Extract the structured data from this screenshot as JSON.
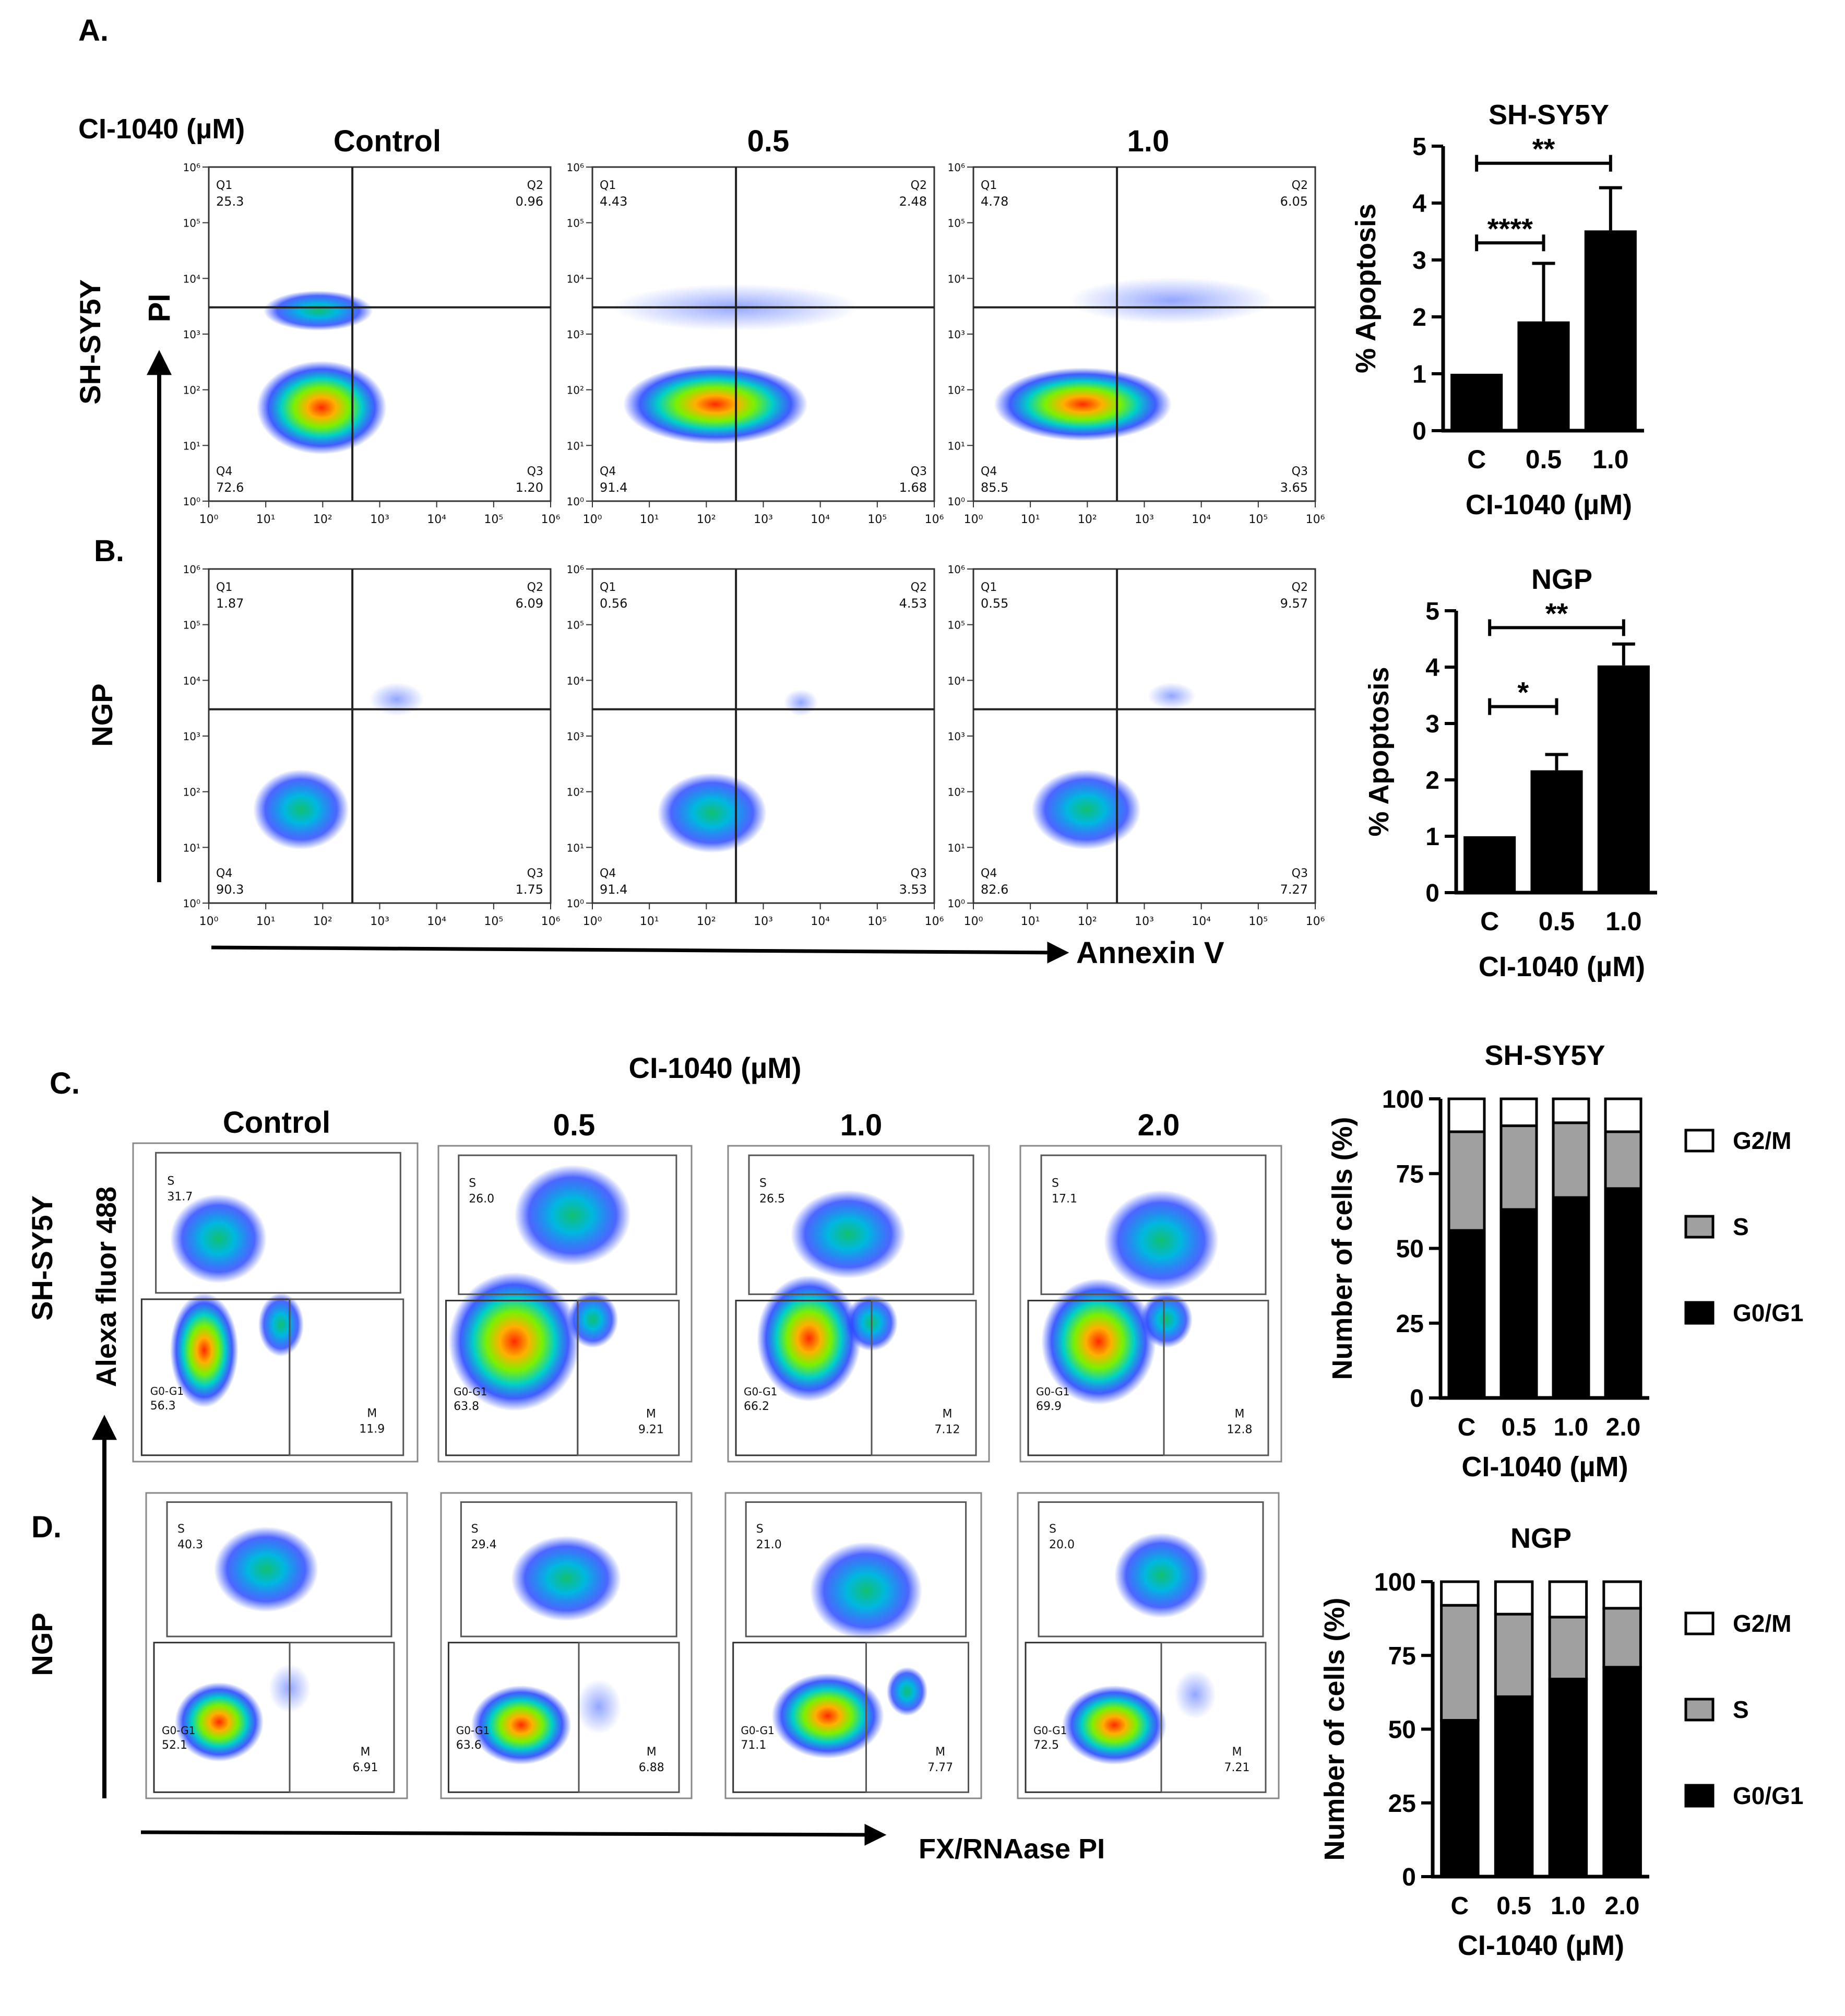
{
  "figure": {
    "panel_letters": [
      "A.",
      "B.",
      "C.",
      "D."
    ],
    "apoptosis_dose_title": "CI-1040 (µM)",
    "apoptosis_column_headers": [
      "Control",
      "0.5",
      "1.0"
    ],
    "apoptosis_row_labels": [
      "SH-SY5Y",
      "NGP"
    ],
    "apoptosis_y_axis_label": "PI",
    "apoptosis_x_axis_label": "Annexin V",
    "cycle_dose_title": "CI-1040 (µM)",
    "cycle_column_headers": [
      "Control",
      "0.5",
      "1.0",
      "2.0"
    ],
    "cycle_row_labels": [
      "SH-SY5Y",
      "NGP"
    ],
    "cycle_y_axis_label": "Alexa fluor 488",
    "cycle_x_axis_label": "FX/RNAase PI"
  },
  "apoptosis_flow_plots": [
    {
      "cell_line": "SH-SY5Y",
      "dose": "Control",
      "quadrants": [
        {
          "name": "Q1",
          "value": "25.3"
        },
        {
          "name": "Q2",
          "value": "0.96"
        },
        {
          "name": "Q3",
          "value": "1.20"
        },
        {
          "name": "Q4",
          "value": "72.6"
        }
      ]
    },
    {
      "cell_line": "SH-SY5Y",
      "dose": "0.5",
      "quadrants": [
        {
          "name": "Q1",
          "value": "4.43"
        },
        {
          "name": "Q2",
          "value": "2.48"
        },
        {
          "name": "Q3",
          "value": "1.68"
        },
        {
          "name": "Q4",
          "value": "91.4"
        }
      ]
    },
    {
      "cell_line": "SH-SY5Y",
      "dose": "1.0",
      "quadrants": [
        {
          "name": "Q1",
          "value": "4.78"
        },
        {
          "name": "Q2",
          "value": "6.05"
        },
        {
          "name": "Q3",
          "value": "3.65"
        },
        {
          "name": "Q4",
          "value": "85.5"
        }
      ]
    },
    {
      "cell_line": "NGP",
      "dose": "Control",
      "quadrants": [
        {
          "name": "Q1",
          "value": "1.87"
        },
        {
          "name": "Q2",
          "value": "6.09"
        },
        {
          "name": "Q3",
          "value": "1.75"
        },
        {
          "name": "Q4",
          "value": "90.3"
        }
      ]
    },
    {
      "cell_line": "NGP",
      "dose": "0.5",
      "quadrants": [
        {
          "name": "Q1",
          "value": "0.56"
        },
        {
          "name": "Q2",
          "value": "4.53"
        },
        {
          "name": "Q3",
          "value": "3.53"
        },
        {
          "name": "Q4",
          "value": "91.4"
        }
      ]
    },
    {
      "cell_line": "NGP",
      "dose": "1.0",
      "quadrants": [
        {
          "name": "Q1",
          "value": "0.55"
        },
        {
          "name": "Q2",
          "value": "9.57"
        },
        {
          "name": "Q3",
          "value": "7.27"
        },
        {
          "name": "Q4",
          "value": "82.6"
        }
      ]
    }
  ],
  "flow_axis_ticks": [
    "10⁰",
    "10¹",
    "10²",
    "10³",
    "10⁴",
    "10⁵",
    "10⁶"
  ],
  "cycle_flow_plots": [
    {
      "cell_line": "SH-SY5Y",
      "dose": "Control",
      "gates": [
        {
          "name": "S",
          "value": "31.7"
        },
        {
          "name": "G0-G1",
          "value": "56.3"
        },
        {
          "name": "M",
          "value": "11.9"
        }
      ]
    },
    {
      "cell_line": "SH-SY5Y",
      "dose": "0.5",
      "gates": [
        {
          "name": "S",
          "value": "26.0"
        },
        {
          "name": "G0-G1",
          "value": "63.8"
        },
        {
          "name": "M",
          "value": "9.21"
        }
      ]
    },
    {
      "cell_line": "SH-SY5Y",
      "dose": "1.0",
      "gates": [
        {
          "name": "S",
          "value": "26.5"
        },
        {
          "name": "G0-G1",
          "value": "66.2"
        },
        {
          "name": "M",
          "value": "7.12"
        }
      ]
    },
    {
      "cell_line": "SH-SY5Y",
      "dose": "2.0",
      "gates": [
        {
          "name": "S",
          "value": "17.1"
        },
        {
          "name": "G0-G1",
          "value": "69.9"
        },
        {
          "name": "M",
          "value": "12.8"
        }
      ]
    },
    {
      "cell_line": "NGP",
      "dose": "Control",
      "gates": [
        {
          "name": "S",
          "value": "40.3"
        },
        {
          "name": "G0-G1",
          "value": "52.1"
        },
        {
          "name": "M",
          "value": "6.91"
        }
      ]
    },
    {
      "cell_line": "NGP",
      "dose": "0.5",
      "gates": [
        {
          "name": "S",
          "value": "29.4"
        },
        {
          "name": "G0-G1",
          "value": "63.6"
        },
        {
          "name": "M",
          "value": "6.88"
        }
      ]
    },
    {
      "cell_line": "NGP",
      "dose": "1.0",
      "gates": [
        {
          "name": "S",
          "value": "21.0"
        },
        {
          "name": "G0-G1",
          "value": "71.1"
        },
        {
          "name": "M",
          "value": "7.77"
        }
      ]
    },
    {
      "cell_line": "NGP",
      "dose": "2.0",
      "gates": [
        {
          "name": "S",
          "value": "20.0"
        },
        {
          "name": "G0-G1",
          "value": "72.5"
        },
        {
          "name": "M",
          "value": "7.21"
        }
      ]
    }
  ],
  "colors": {
    "bar": "#000000",
    "s_phase": "#a0a0a0",
    "g2m": "#ffffff",
    "density_low": "#1a1aff",
    "density_high": "#ff2a00"
  },
  "chart_data": [
    {
      "type": "bar",
      "title": "SH-SY5Y",
      "categories": [
        "C",
        "0.5",
        "1.0"
      ],
      "values": [
        1.0,
        1.92,
        3.52
      ],
      "errors": [
        0.0,
        1.02,
        0.75
      ],
      "xlabel": "CI-1040 (µM)",
      "ylabel": "% Apoptosis",
      "ylim": [
        0,
        5
      ],
      "yticks": [
        0,
        1,
        2,
        3,
        4,
        5
      ],
      "significance": [
        {
          "from": "C",
          "to": "0.5",
          "label": "****"
        },
        {
          "from": "C",
          "to": "1.0",
          "label": "**"
        }
      ]
    },
    {
      "type": "bar",
      "title": "NGP",
      "categories": [
        "C",
        "0.5",
        "1.0"
      ],
      "values": [
        1.0,
        2.17,
        4.03
      ],
      "errors": [
        0.0,
        0.28,
        0.38
      ],
      "xlabel": "CI-1040 (µM)",
      "ylabel": "% Apoptosis",
      "ylim": [
        0,
        5
      ],
      "yticks": [
        0,
        1,
        2,
        3,
        4,
        5
      ],
      "significance": [
        {
          "from": "C",
          "to": "0.5",
          "label": "*"
        },
        {
          "from": "C",
          "to": "1.0",
          "label": "**"
        }
      ]
    },
    {
      "type": "bar",
      "stacked": true,
      "title": "SH-SY5Y",
      "categories": [
        "C",
        "0.5",
        "1.0",
        "2.0"
      ],
      "series": [
        {
          "name": "G0/G1",
          "values": [
            56,
            63,
            67,
            70
          ]
        },
        {
          "name": "S",
          "values": [
            33,
            28,
            25,
            19
          ]
        },
        {
          "name": "G2/M",
          "values": [
            11,
            9,
            8,
            11
          ]
        }
      ],
      "xlabel": "CI-1040 (µM)",
      "ylabel": "Number of cells (%)",
      "ylim": [
        0,
        100
      ],
      "yticks": [
        0,
        25,
        50,
        75,
        100
      ],
      "legend": [
        "G2/M",
        "S",
        "G0/G1"
      ]
    },
    {
      "type": "bar",
      "stacked": true,
      "title": "NGP",
      "categories": [
        "C",
        "0.5",
        "1.0",
        "2.0"
      ],
      "series": [
        {
          "name": "G0/G1",
          "values": [
            53,
            61,
            67,
            71
          ]
        },
        {
          "name": "S",
          "values": [
            39,
            28,
            21,
            20
          ]
        },
        {
          "name": "G2/M",
          "values": [
            8,
            11,
            12,
            9
          ]
        }
      ],
      "xlabel": "CI-1040 (µM)",
      "ylabel": "Number of cells (%)",
      "ylim": [
        0,
        100
      ],
      "yticks": [
        0,
        25,
        50,
        75,
        100
      ],
      "legend": [
        "G2/M",
        "S",
        "G0/G1"
      ]
    }
  ]
}
